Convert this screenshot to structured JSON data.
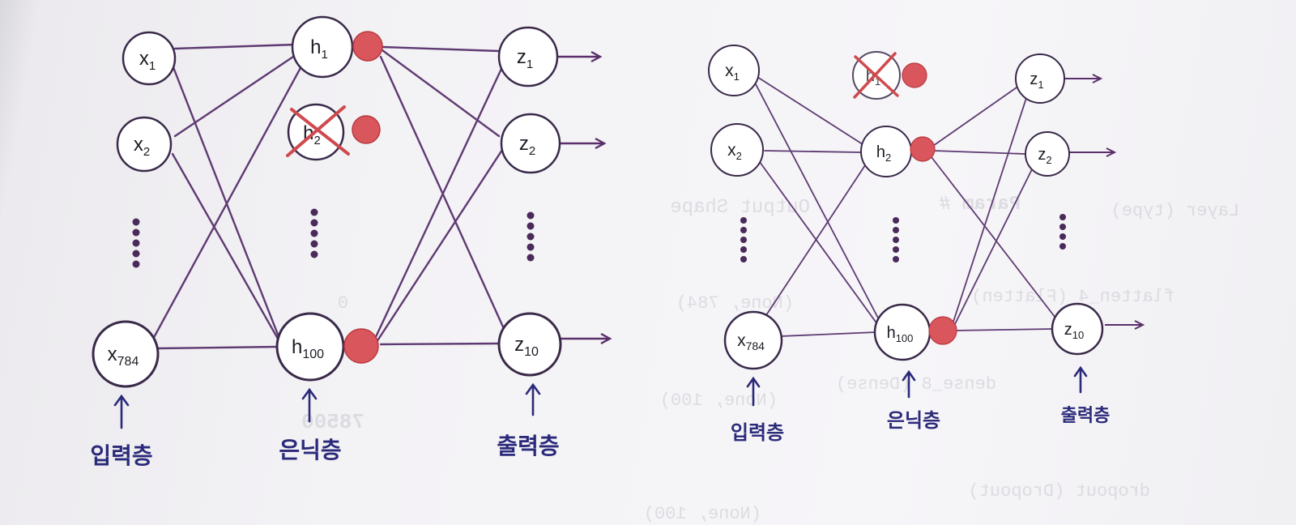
{
  "nodes": {
    "x1": {
      "base": "x",
      "sub": "1"
    },
    "x2": {
      "base": "x",
      "sub": "2"
    },
    "x784": {
      "base": "x",
      "sub": "784"
    },
    "h1": {
      "base": "h",
      "sub": "1"
    },
    "h2": {
      "base": "h",
      "sub": "2"
    },
    "h100": {
      "base": "h",
      "sub": "100"
    },
    "z1": {
      "base": "z",
      "sub": "1"
    },
    "z2": {
      "base": "z",
      "sub": "2"
    },
    "z10": {
      "base": "z",
      "sub": "10"
    }
  },
  "layer_labels": {
    "input": "입력층",
    "hidden": "은닉층",
    "output": "출력층"
  },
  "left_network": {
    "dropped_nodes": [
      "h2"
    ]
  },
  "right_network": {
    "dropped_nodes": [
      "h1"
    ]
  },
  "background_text": {
    "output_shape": "Output Shape",
    "param": "Param #",
    "layer_type": "Layer (type)",
    "flatten_row": "flatten_4 (Flatten)",
    "flatten_shape": "(None, 784)",
    "flatten_param": "0",
    "dense_row": "dense_8 (Dense)",
    "dense_shape": "(None, 100)",
    "dense_param": "78500",
    "dropout_row": "dropout (Dropout)",
    "dropout_shape": "(None, 100)"
  },
  "colors": {
    "edge": "#5e3a72",
    "node_stroke": "#3a2a4a",
    "activation_dot": "#d9575c",
    "drop_cross": "#cf4a4e",
    "label": "#2b2a7a"
  }
}
